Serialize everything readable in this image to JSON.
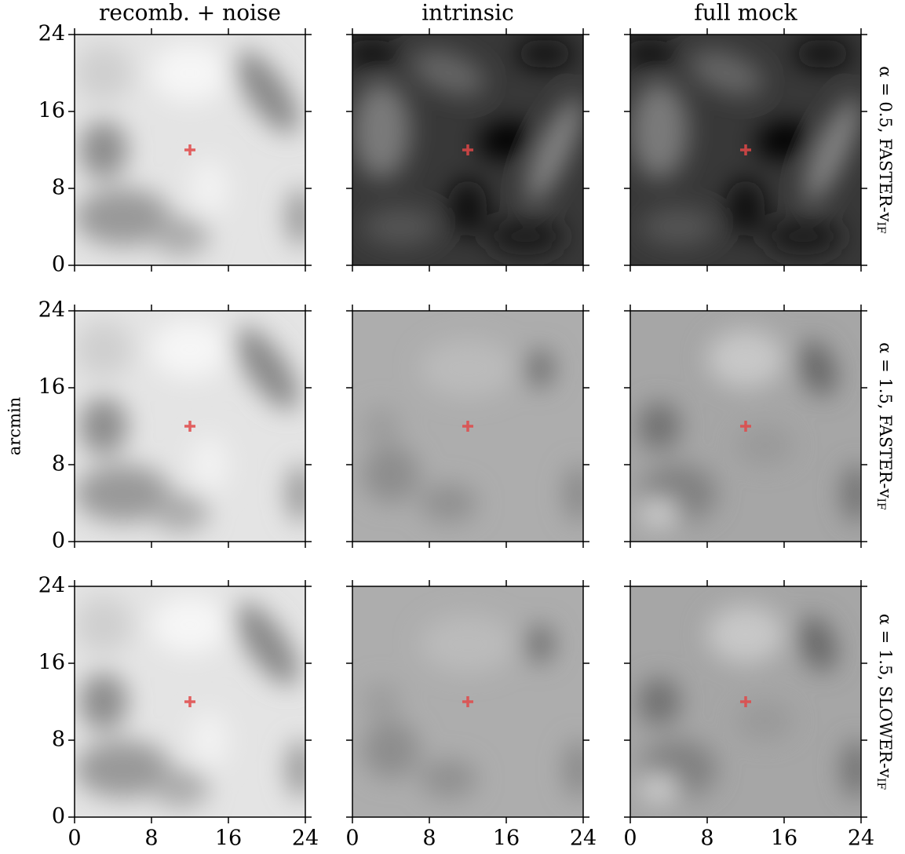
{
  "chart_data": {
    "type": "image_grid",
    "columns": [
      "recomb. + noise",
      "intrinsic",
      "full mock"
    ],
    "rows": [
      {
        "text": "α = 0.5, FASTER-v",
        "sub": "IF"
      },
      {
        "text": "α = 1.5, FASTER-v",
        "sub": "IF"
      },
      {
        "text": "α = 1.5, SLOWER-v",
        "sub": "IF"
      }
    ],
    "ylabel": "arcmin",
    "xlim": [
      0,
      24
    ],
    "ylim": [
      0,
      24
    ],
    "xticks": [
      0,
      8,
      16,
      24
    ],
    "yticks": [
      0,
      8,
      16,
      24
    ],
    "marker": {
      "x": 12,
      "y": 12,
      "color": "#e04848"
    }
  }
}
